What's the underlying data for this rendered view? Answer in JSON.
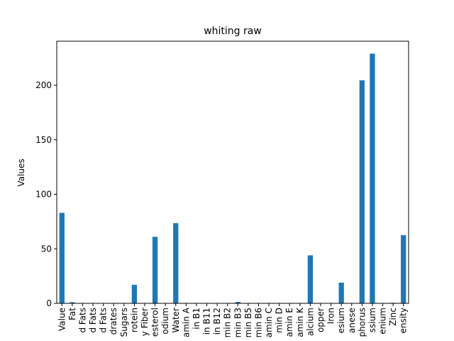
{
  "chart_data": {
    "type": "bar",
    "title": "whiting raw",
    "y_label": "Values",
    "categories": [
      "Value",
      "Fat",
      "d Fats",
      "d Fats",
      "d Fats",
      "drates",
      "Sugars",
      "rotein",
      "y Fiber",
      "esterol",
      "odium",
      "Water",
      "amin A",
      "in B1",
      "in B11",
      "in B12",
      "min B2",
      "min B3",
      "min B5",
      "min B6",
      "amin C",
      "min D",
      "amin E",
      "amin K",
      "alcium",
      "opper",
      "Iron",
      "esium",
      "anese",
      "phorus",
      "ssium",
      "enium",
      "Zinc",
      "ensity"
    ],
    "values": [
      83,
      1,
      0,
      0,
      0,
      0,
      0,
      17,
      0,
      61,
      0,
      73.5,
      0,
      0,
      0,
      0,
      0,
      1.3,
      0,
      0,
      0,
      0,
      0,
      0,
      44,
      0,
      0,
      19,
      0,
      204.5,
      229,
      0,
      0.5,
      62.5
    ],
    "color": "#1f77b4",
    "ylim": [
      0,
      240.4
    ],
    "yticks": [
      0,
      50,
      100,
      150,
      200
    ],
    "grid": false
  }
}
